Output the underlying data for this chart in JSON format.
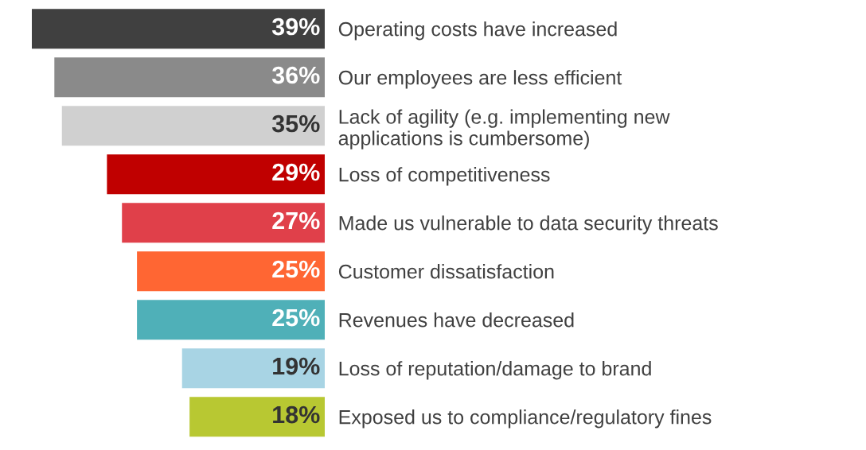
{
  "chart_data": {
    "type": "bar",
    "orientation": "horizontal",
    "categories": [
      "Operating costs have increased",
      "Our employees are less efficient",
      "Lack of agility (e.g. implementing new\napplications is cumbersome)",
      "Loss of competitiveness",
      "Made us vulnerable to data security threats",
      "Customer dissatisfaction",
      "Revenues have decreased",
      "Loss of reputation/damage to brand",
      "Exposed us to compliance/regulatory fines"
    ],
    "values": [
      39,
      36,
      35,
      29,
      27,
      25,
      25,
      19,
      18
    ],
    "value_labels": [
      "39%",
      "36%",
      "35%",
      "29%",
      "27%",
      "25%",
      "25%",
      "19%",
      "18%"
    ],
    "colors": [
      "#404040",
      "#8a8a8a",
      "#d0d0d0",
      "#c00000",
      "#e0404a",
      "#ff6633",
      "#4fb0b8",
      "#a8d4e4",
      "#b8c832"
    ]
  }
}
